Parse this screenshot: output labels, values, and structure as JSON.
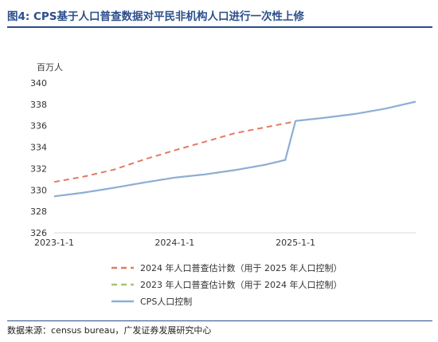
{
  "figure": {
    "title": "图4:  CPS基于人口普查数据对平民非机构人口进行一次性上修",
    "source": "数据来源：census bureau，广发证券发展研究中心"
  },
  "colors": {
    "title": "#2b4f8c",
    "series_2024": "#e27b63",
    "series_2023": "#a8c66c",
    "series_cps": "#8eaed4",
    "axis": "#d9d9d9",
    "tick_text": "#333333"
  },
  "chart_data": {
    "type": "line",
    "ylabel": "百万人",
    "ylim": [
      326,
      340
    ],
    "yticks": [
      326,
      328,
      330,
      332,
      334,
      336,
      338,
      340
    ],
    "xticks": [
      {
        "x": "2023-01-01",
        "label": "2023-1-1"
      },
      {
        "x": "2024-01-01",
        "label": "2024-1-1"
      },
      {
        "x": "2025-01-01",
        "label": "2025-1-1"
      }
    ],
    "xlim": [
      "2023-01-01",
      "2025-12-31"
    ],
    "grid": false,
    "legend_position": "bottom",
    "series": [
      {
        "name": "2024 年人口普查估计数（用于 2025 年人口控制）",
        "style": "dashed",
        "color": "#e27b63",
        "points": [
          {
            "x": "2023-01-01",
            "y": 330.75
          },
          {
            "x": "2023-04-01",
            "y": 331.25
          },
          {
            "x": "2023-07-01",
            "y": 331.9
          },
          {
            "x": "2023-10-01",
            "y": 332.85
          },
          {
            "x": "2024-01-01",
            "y": 333.7
          },
          {
            "x": "2024-04-01",
            "y": 334.5
          },
          {
            "x": "2024-07-01",
            "y": 335.3
          },
          {
            "x": "2024-10-01",
            "y": 335.85
          },
          {
            "x": "2025-01-01",
            "y": 336.4
          }
        ]
      },
      {
        "name": "2023 年人口普查估计数（用于 2024 年人口控制）",
        "style": "dashed",
        "color": "#a8c66c",
        "points": [
          {
            "x": "2023-01-01",
            "y": 329.4
          },
          {
            "x": "2023-04-01",
            "y": 329.75
          },
          {
            "x": "2023-07-01",
            "y": 330.2
          },
          {
            "x": "2023-10-01",
            "y": 330.7
          },
          {
            "x": "2024-01-01",
            "y": 331.15
          },
          {
            "x": "2024-04-01",
            "y": 331.45
          },
          {
            "x": "2024-07-01",
            "y": 331.85
          },
          {
            "x": "2024-10-01",
            "y": 332.35
          },
          {
            "x": "2024-12-01",
            "y": 332.8
          }
        ]
      },
      {
        "name": "CPS人口控制",
        "style": "solid",
        "color": "#8eaed4",
        "points": [
          {
            "x": "2023-01-01",
            "y": 329.4
          },
          {
            "x": "2023-04-01",
            "y": 329.75
          },
          {
            "x": "2023-07-01",
            "y": 330.2
          },
          {
            "x": "2023-10-01",
            "y": 330.7
          },
          {
            "x": "2024-01-01",
            "y": 331.15
          },
          {
            "x": "2024-04-01",
            "y": 331.45
          },
          {
            "x": "2024-07-01",
            "y": 331.85
          },
          {
            "x": "2024-10-01",
            "y": 332.35
          },
          {
            "x": "2024-12-01",
            "y": 332.8
          },
          {
            "x": "2025-01-01",
            "y": 336.45
          },
          {
            "x": "2025-04-01",
            "y": 336.75
          },
          {
            "x": "2025-07-01",
            "y": 337.1
          },
          {
            "x": "2025-10-01",
            "y": 337.6
          },
          {
            "x": "2025-12-31",
            "y": 338.25
          }
        ]
      }
    ]
  }
}
